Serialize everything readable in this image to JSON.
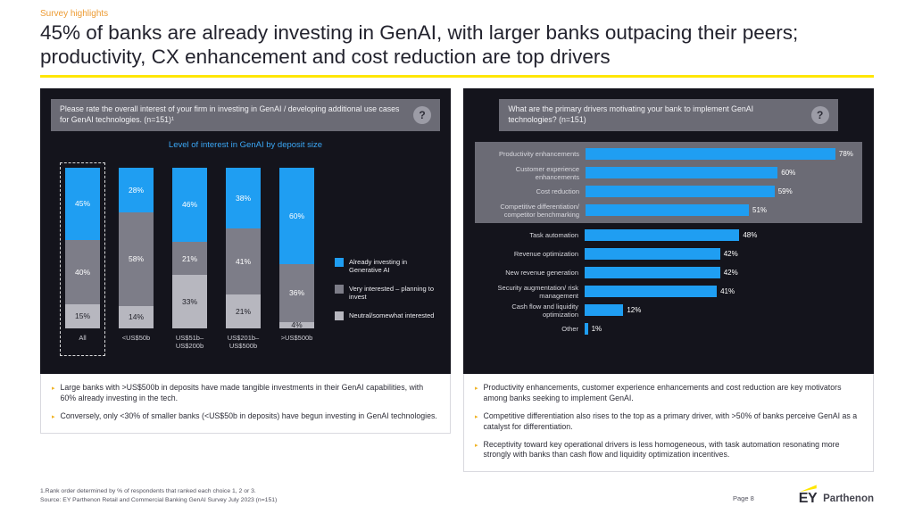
{
  "header": {
    "eyebrow": "Survey highlights",
    "title": "45% of banks are already investing in GenAI, with larger banks outpacing their peers; productivity, CX enhancement and cost reduction are top drivers"
  },
  "left_panel": {
    "question": "Please rate the overall interest of your firm in investing in GenAI / developing additional use cases for GenAI technologies. (n=151)¹",
    "chart_title": "Level of interest in GenAI by deposit size",
    "bullets": [
      "Large banks with >US$500b in deposits have made tangible investments in their GenAI capabilities, with 60% already investing in the tech.",
      "Conversely, only <30% of smaller banks (<US$50b in deposits) have begun investing in GenAI technologies."
    ]
  },
  "right_panel": {
    "question": "What are the primary drivers motivating your bank to implement GenAI technologies? (n=151)",
    "bullets": [
      "Productivity enhancements, customer experience enhancements and cost reduction are key motivators among banks seeking to implement GenAI.",
      "Competitive differentiation also rises to the top as a primary driver, with >50% of banks perceive GenAI as a catalyst for differentiation.",
      "Receptivity toward key operational drivers is less homogeneous, with task automation resonating more strongly with banks than cash flow and liquidity optimization incentives."
    ]
  },
  "chart_data": [
    {
      "type": "bar",
      "variant": "stacked-100-vertical",
      "title": "Level of interest in GenAI by deposit size",
      "categories": [
        "All",
        "<US$50b",
        "US$51b–US$200b",
        "US$201b–US$500b",
        ">US$500b"
      ],
      "series": [
        {
          "name": "Already investing in Generative AI",
          "color": "#1f9ef2",
          "text_color": "#ffffff",
          "values": [
            45,
            28,
            46,
            38,
            60
          ]
        },
        {
          "name": "Very interested – planning to invest",
          "color": "#7d7d88",
          "text_color": "#ffffff",
          "values": [
            40,
            58,
            21,
            41,
            36
          ]
        },
        {
          "name": "Neutral/somewhat interested",
          "color": "#b7b7bf",
          "text_color": "#23232b",
          "values": [
            15,
            14,
            33,
            21,
            4
          ]
        }
      ],
      "unit": "%",
      "ylim": [
        0,
        100
      ],
      "legend_position": "right",
      "highlighted_category": "All"
    },
    {
      "type": "bar",
      "variant": "horizontal",
      "title": "",
      "categories": [
        "Productivity enhancements",
        "Customer experience enhancements",
        "Cost reduction",
        "Competitive differentiation/ competitor benchmarking",
        "Task automation",
        "Revenue optimization",
        "New revenue generation",
        "Security augmentation/ risk management",
        "Cash flow and liquidity optimization",
        "Other"
      ],
      "values": [
        78,
        60,
        59,
        51,
        48,
        42,
        42,
        41,
        12,
        1
      ],
      "unit": "%",
      "bar_color": "#1f9ef2",
      "highlighted_count": 4,
      "xlim": [
        0,
        85
      ]
    }
  ],
  "footer": {
    "footnote1": "1.Rank order determined by % of respondents that ranked each choice 1, 2 or 3.",
    "source": "Source: EY Parthenon Retail and Commercial Banking GenAI Survey July 2023 (n=151)",
    "page": "Page 8",
    "logo": {
      "ey": "EY",
      "parthenon": "Parthenon"
    }
  },
  "misc": {
    "help_glyph": "?",
    "bullet_glyph": "▸"
  },
  "colors": {
    "accent_yellow": "#ffe600",
    "eyebrow_orange": "#ed9b33",
    "bar_blue": "#1f9ef2",
    "bar_gray": "#7d7d88",
    "bar_light_gray": "#b7b7bf",
    "panel_background": "#14141c",
    "question_box_gray": "#6b6b75"
  }
}
